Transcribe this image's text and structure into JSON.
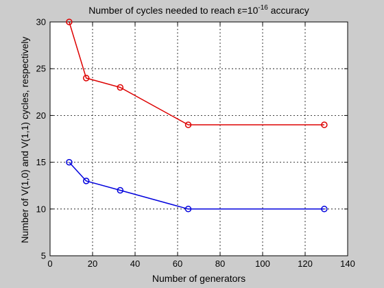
{
  "chart_data": {
    "type": "line",
    "title_prefix": "Number of cycles needed to reach ",
    "title_epsilon": "ε",
    "title_eq": "=10",
    "title_exponent": "-16",
    "title_suffix": " accuracy",
    "xlabel": "Number of generators",
    "ylabel": "Number of V(1,0) and V(1,1) cycles, respectively",
    "xlim": [
      0,
      140
    ],
    "ylim": [
      5,
      30
    ],
    "xticks": [
      0,
      20,
      40,
      60,
      80,
      100,
      120,
      140
    ],
    "yticks": [
      5,
      10,
      15,
      20,
      25,
      30
    ],
    "grid": true,
    "series": [
      {
        "color": "#dd0000",
        "marker": "circle",
        "x": [
          9,
          17,
          33,
          65,
          129
        ],
        "y": [
          30,
          24,
          23,
          19,
          19
        ]
      },
      {
        "color": "#0000dd",
        "marker": "circle",
        "x": [
          9,
          17,
          33,
          65,
          129
        ],
        "y": [
          15,
          13,
          12,
          10,
          10
        ]
      }
    ]
  }
}
